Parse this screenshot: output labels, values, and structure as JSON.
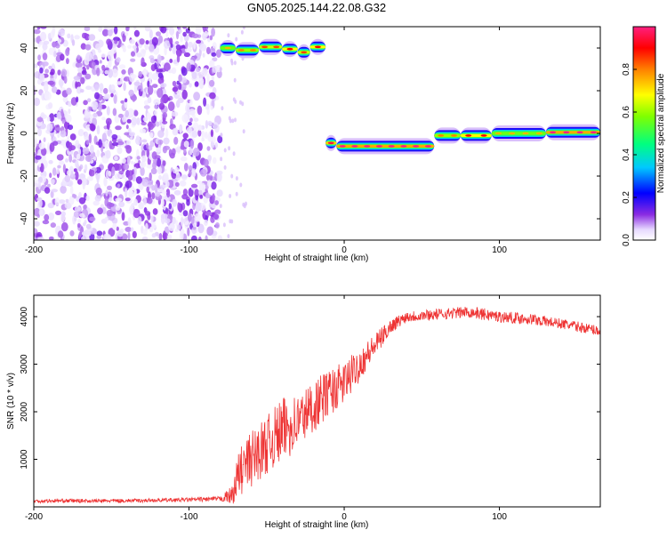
{
  "title": "GN05.2025.144.22.08.G32",
  "chart_data": [
    {
      "type": "heatmap",
      "xlabel": "Height of straight line (km)",
      "ylabel": "Frequency (Hz)",
      "xlim": [
        -200,
        165
      ],
      "ylim": [
        -50,
        50
      ],
      "xticks": [
        "-200",
        "-100",
        "0",
        "100"
      ],
      "yticks": [
        "40",
        "20",
        "0",
        "-20",
        "-40"
      ],
      "colorbar": {
        "label": "Normalized spectral amplitude",
        "range": [
          0,
          1
        ],
        "ticks": [
          "0.0",
          "0.2",
          "0.4",
          "0.6",
          "0.8"
        ]
      },
      "noise_region": {
        "x": [
          -200,
          -80
        ],
        "y": [
          -50,
          50
        ]
      },
      "tracks": [
        {
          "x": [
            -80,
            -70
          ],
          "y": 40,
          "amplitude": 0.7
        },
        {
          "x": [
            -70,
            -55
          ],
          "y": 39,
          "amplitude": 0.75
        },
        {
          "x": [
            -55,
            -40
          ],
          "y": 40.5,
          "amplitude": 0.8
        },
        {
          "x": [
            -40,
            -30
          ],
          "y": 39.5,
          "amplitude": 0.85
        },
        {
          "x": [
            -30,
            -22
          ],
          "y": 38,
          "amplitude": 0.8
        },
        {
          "x": [
            -22,
            -12
          ],
          "y": 40.5,
          "amplitude": 0.85
        },
        {
          "x": [
            -12,
            -5
          ],
          "y": -4.5,
          "amplitude": 0.9
        },
        {
          "x": [
            -5,
            58
          ],
          "y": -6,
          "amplitude": 0.95
        },
        {
          "x": [
            58,
            75
          ],
          "y": -1,
          "amplitude": 0.75
        },
        {
          "x": [
            75,
            95
          ],
          "y": -1,
          "amplitude": 0.85
        },
        {
          "x": [
            95,
            130
          ],
          "y": 0,
          "amplitude": 0.7
        },
        {
          "x": [
            130,
            165
          ],
          "y": 0.5,
          "amplitude": 0.95
        }
      ]
    },
    {
      "type": "line",
      "xlabel": "Height of straight line (km)",
      "ylabel": "SNR (10 * v/v)",
      "xlim": [
        -200,
        165
      ],
      "ylim": [
        0,
        4450
      ],
      "xticks": [
        "-200",
        "-100",
        "0",
        "100"
      ],
      "yticks": [
        "4000",
        "3000",
        "2000",
        "1000"
      ],
      "color": "#ee3333",
      "series": [
        {
          "x": [
            -200,
            -180,
            -160,
            -140,
            -120,
            -100,
            -80,
            -72,
            -68,
            -60,
            -50,
            -40,
            -30,
            -20,
            -10,
            0,
            10,
            20,
            30,
            40,
            60,
            80,
            90,
            100,
            120,
            140,
            165
          ],
          "values": [
            120,
            130,
            125,
            130,
            140,
            150,
            170,
            250,
            700,
            1000,
            1300,
            1600,
            1800,
            2100,
            2400,
            2600,
            3000,
            3400,
            3800,
            4000,
            4050,
            4100,
            4050,
            4000,
            3950,
            3850,
            3700
          ],
          "noise": [
            40,
            40,
            40,
            40,
            40,
            45,
            50,
            200,
            500,
            600,
            600,
            700,
            600,
            550,
            500,
            450,
            350,
            250,
            150,
            120,
            120,
            120,
            130,
            120,
            120,
            110,
            110
          ]
        }
      ]
    }
  ]
}
